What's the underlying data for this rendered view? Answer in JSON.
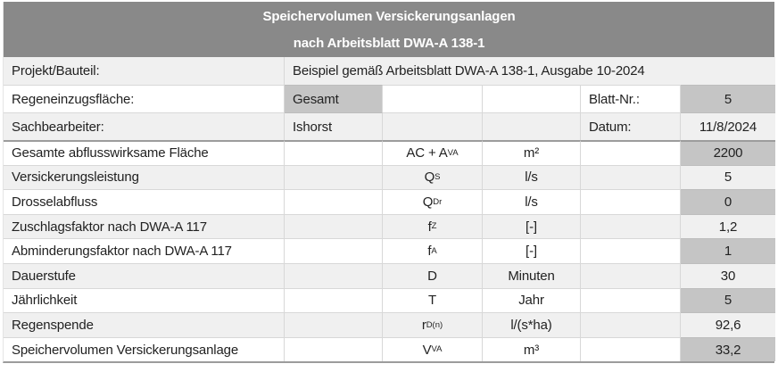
{
  "title": {
    "line1": "Speichervolumen Versickerungsanlagen",
    "line2": "nach Arbeitsblatt DWA-A 138-1"
  },
  "meta": {
    "projekt": {
      "label": "Projekt/Bauteil:",
      "value": "Beispiel gemäß Arbeitsblatt DWA-A 138-1, Ausgabe 10-2024"
    },
    "regeneinzug": {
      "label": "Regeneinzugsfläche:",
      "value": "Gesamt",
      "right_label": "Blatt-Nr.:",
      "right_value": "5"
    },
    "sachbearbeiter": {
      "label": "Sachbearbeiter:",
      "value": "Ishorst",
      "right_label": "Datum:",
      "right_value": "11/8/2024"
    }
  },
  "rows": [
    {
      "label": "Gesamte abflusswirksame Fläche",
      "symbol": {
        "base": "AC + A",
        "sub": "VA"
      },
      "unit": "m²",
      "value": "2200"
    },
    {
      "label": "Versickerungsleistung",
      "symbol": {
        "base": "Q",
        "sub": "S"
      },
      "unit": "l/s",
      "value": "5"
    },
    {
      "label": "Drosselabfluss",
      "symbol": {
        "base": "Q",
        "sub": "Dr"
      },
      "unit": "l/s",
      "value": "0"
    },
    {
      "label": "Zuschlagsfaktor nach DWA-A 117",
      "symbol": {
        "base": "f",
        "sub": "Z"
      },
      "unit": "[-]",
      "value": "1,2"
    },
    {
      "label": "Abminderungsfaktor nach DWA-A 117",
      "symbol": {
        "base": "f",
        "sub": "A"
      },
      "unit": "[-]",
      "value": "1"
    },
    {
      "label": "Dauerstufe",
      "symbol": {
        "base": "D",
        "sub": ""
      },
      "unit": "Minuten",
      "value": "30"
    },
    {
      "label": "Jährlichkeit",
      "symbol": {
        "base": "T",
        "sub": ""
      },
      "unit": "Jahr",
      "value": "5"
    },
    {
      "label": "Regenspende",
      "symbol": {
        "base": "r",
        "sub": "D(n)"
      },
      "unit": "l/(s*ha)",
      "value": "92,6"
    },
    {
      "label": "Speichervolumen Versickerungsanlage",
      "symbol": {
        "base": "V",
        "sub": "VA"
      },
      "unit": "m³",
      "value": "33,2"
    }
  ],
  "colors": {
    "title_bg": "#898989",
    "cell_gray": "#c5c5c5",
    "row_stripe": "#f0f0f0"
  }
}
